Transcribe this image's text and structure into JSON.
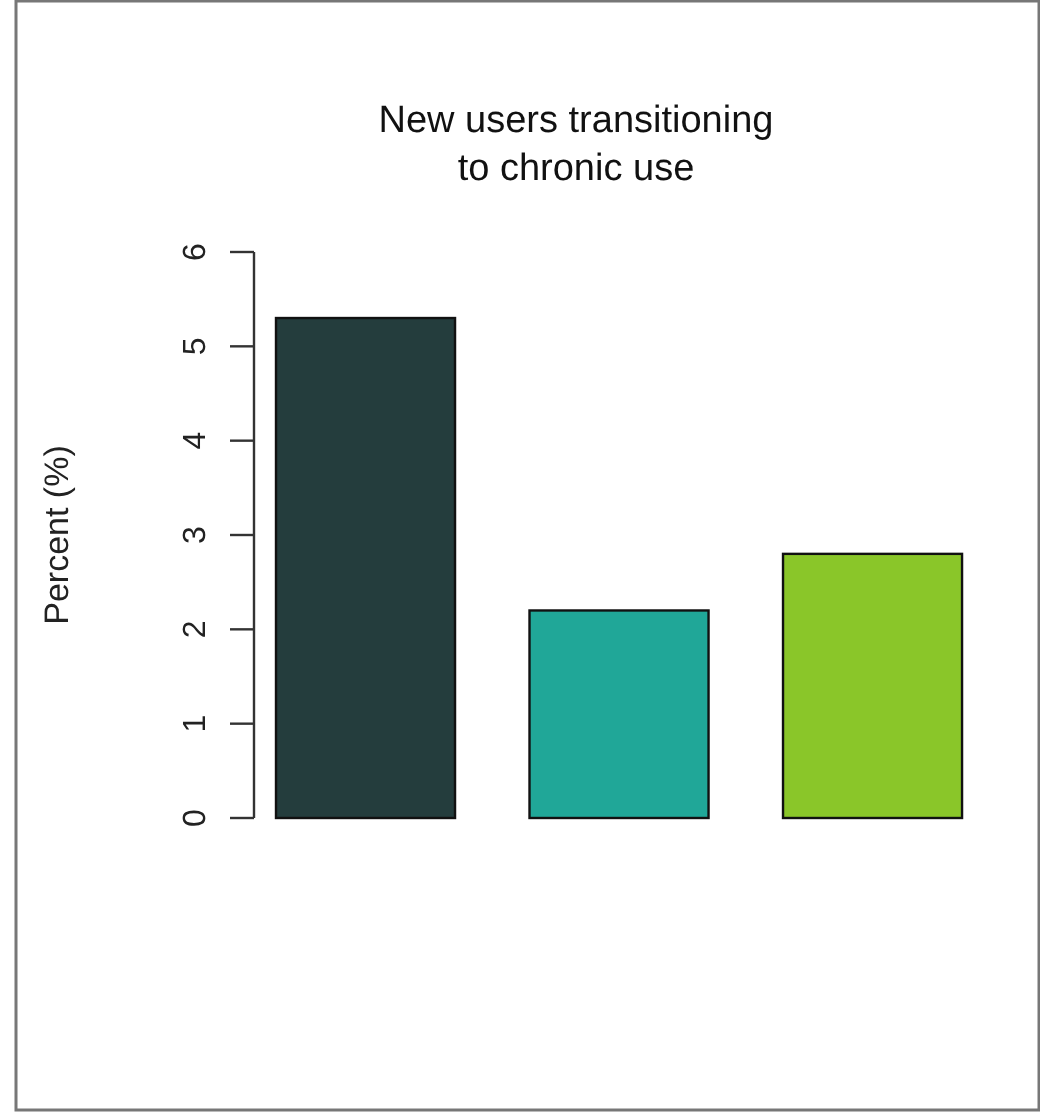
{
  "chart_data": {
    "type": "bar",
    "title": "New users transitioning\nto chronic use",
    "ylabel": "Percent (%)",
    "categories": [
      null,
      null,
      null
    ],
    "values": [
      5.3,
      2.2,
      2.8
    ],
    "colors": [
      "#243d3d",
      "#20a798",
      "#8ac629"
    ],
    "ylim": [
      0,
      6
    ],
    "yticks": [
      0,
      1,
      2,
      3,
      4,
      5,
      6
    ]
  }
}
